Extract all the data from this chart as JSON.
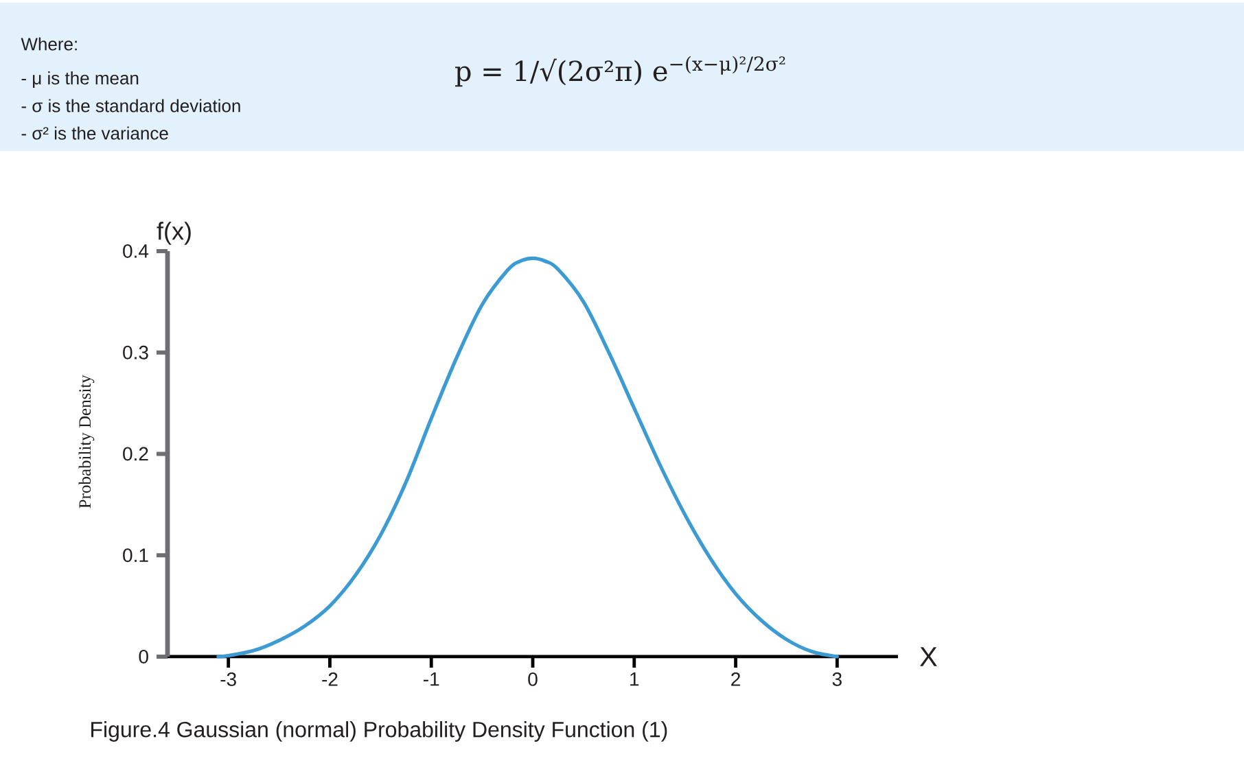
{
  "chart_data": {
    "type": "line",
    "title": "Figure.4 Gaussian (normal) Probability Density Function (1)",
    "xlabel": "X",
    "ylabel": "Probability Density",
    "annotations": [
      "f(x)",
      "Where:",
      "- μ is the mean",
      "- σ is the standard deviation",
      "- σ² is the variance",
      "p = 1/√(2σ²π) e$^{−(x−μ)²/2σ²}$"
    ],
    "x": [
      -3.1,
      -3,
      -2.75,
      -2.5,
      -2.25,
      -2,
      -1.75,
      -1.5,
      -1.25,
      -1,
      -0.75,
      -0.5,
      -0.25,
      -0.125,
      0,
      0.125,
      0.25,
      0.5,
      0.75,
      1,
      1.25,
      1.5,
      1.75,
      2,
      2.25,
      2.5,
      2.75,
      3
    ],
    "series": [
      {
        "color": "#3d9bd4",
        "values": [
          0,
          0.001,
          0.006,
          0.016,
          0.03,
          0.05,
          0.08,
          0.12,
          0.172,
          0.235,
          0.295,
          0.347,
          0.381,
          0.39,
          0.393,
          0.39,
          0.382,
          0.35,
          0.3,
          0.245,
          0.19,
          0.14,
          0.097,
          0.062,
          0.036,
          0.017,
          0.005,
          0
        ]
      }
    ],
    "xlim": [
      -3.6,
      3.6
    ],
    "ylim": [
      0,
      0.4
    ],
    "xticks": [
      -3,
      -2,
      -1,
      0,
      1,
      2,
      3
    ],
    "yticks": [
      0,
      0.1,
      0.2,
      0.3,
      0.4
    ],
    "line_style": "solid"
  }
}
